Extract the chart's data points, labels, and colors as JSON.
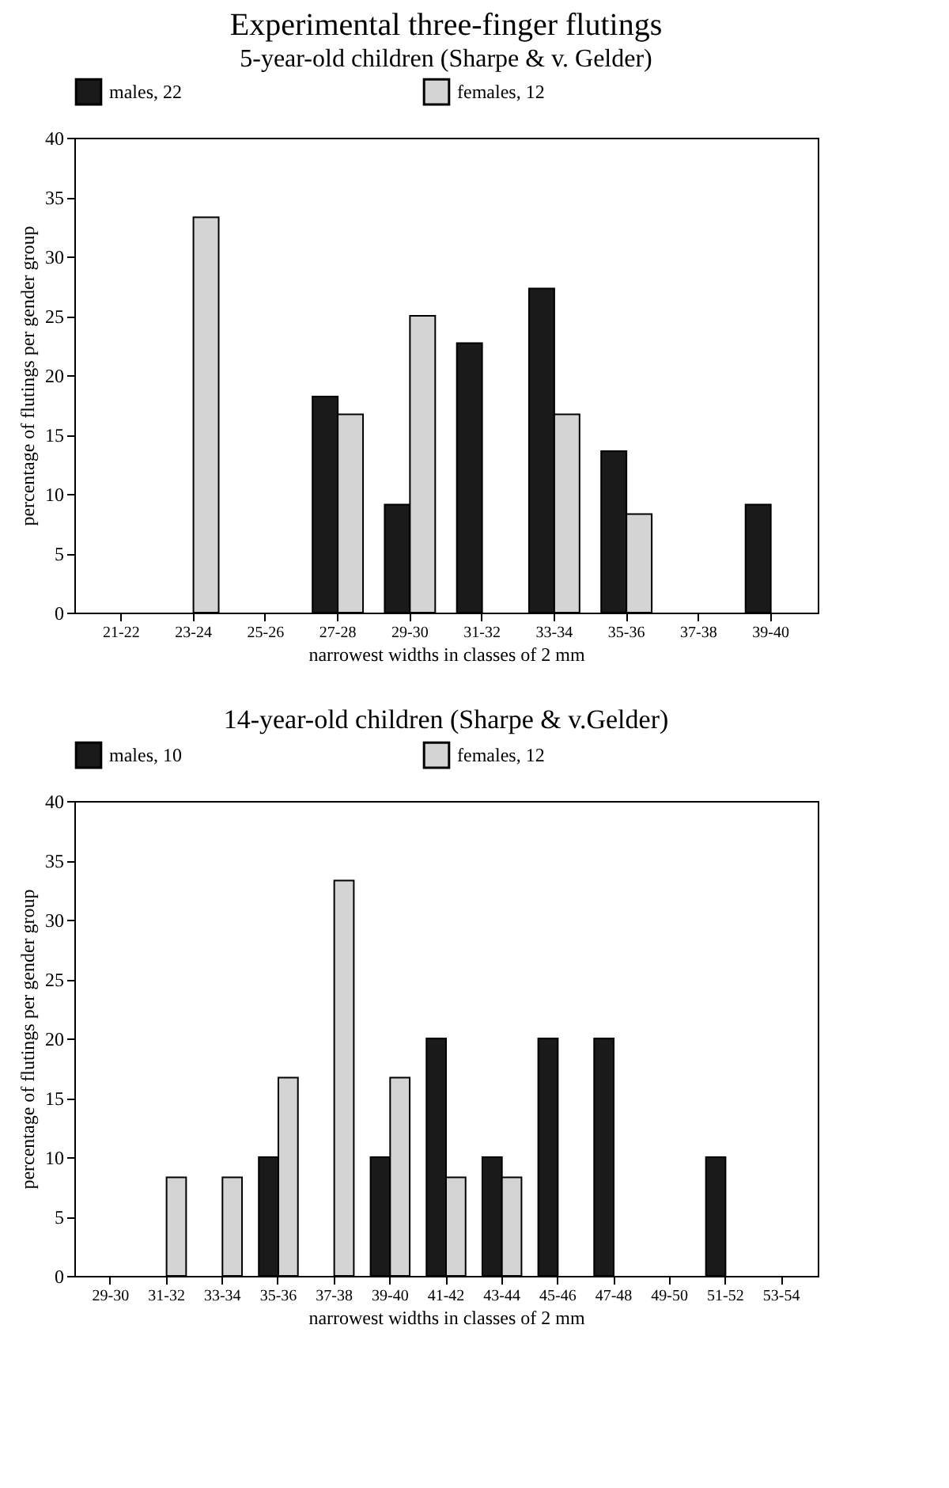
{
  "chart_data": [
    {
      "type": "bar",
      "title": "Experimental three-finger flutings",
      "subtitle": "5-year-old children (Sharpe & v. Gelder)",
      "xlabel": "narrowest widths in classes of 2 mm",
      "ylabel": "percentage of flutings per gender group",
      "categories": [
        "21-22",
        "23-24",
        "25-26",
        "27-28",
        "29-30",
        "31-32",
        "33-34",
        "35-36",
        "37-38",
        "39-40"
      ],
      "series": [
        {
          "name": "males, 22",
          "color": "#1a1a1a",
          "values": [
            null,
            null,
            null,
            18.2,
            9.1,
            22.7,
            27.3,
            13.6,
            null,
            9.1
          ]
        },
        {
          "name": "females, 12",
          "color": "#d4d4d4",
          "values": [
            null,
            33.3,
            null,
            16.7,
            25.0,
            null,
            16.7,
            8.3,
            null,
            null
          ]
        }
      ],
      "ylim": [
        0,
        40
      ],
      "yticks": [
        0,
        5,
        10,
        15,
        20,
        25,
        30,
        35,
        40
      ],
      "grid": false,
      "legend": "top"
    },
    {
      "type": "bar",
      "title": "14-year-old children (Sharpe & v.Gelder)",
      "xlabel": "narrowest widths in classes of 2 mm",
      "ylabel": "percentage of flutings per gender group",
      "categories": [
        "29-30",
        "31-32",
        "33-34",
        "35-36",
        "37-38",
        "39-40",
        "41-42",
        "43-44",
        "45-46",
        "47-48",
        "49-50",
        "51-52",
        "53-54"
      ],
      "series": [
        {
          "name": "males, 10",
          "color": "#1a1a1a",
          "values": [
            null,
            null,
            null,
            10,
            null,
            10,
            20,
            10,
            20,
            20,
            null,
            10,
            null
          ]
        },
        {
          "name": "females, 12",
          "color": "#d4d4d4",
          "values": [
            null,
            8.3,
            8.3,
            16.7,
            33.3,
            16.7,
            8.3,
            8.3,
            null,
            null,
            null,
            null,
            null
          ]
        }
      ],
      "ylim": [
        0,
        40
      ],
      "yticks": [
        0,
        5,
        10,
        15,
        20,
        25,
        30,
        35,
        40
      ],
      "grid": false,
      "legend": "top"
    }
  ]
}
